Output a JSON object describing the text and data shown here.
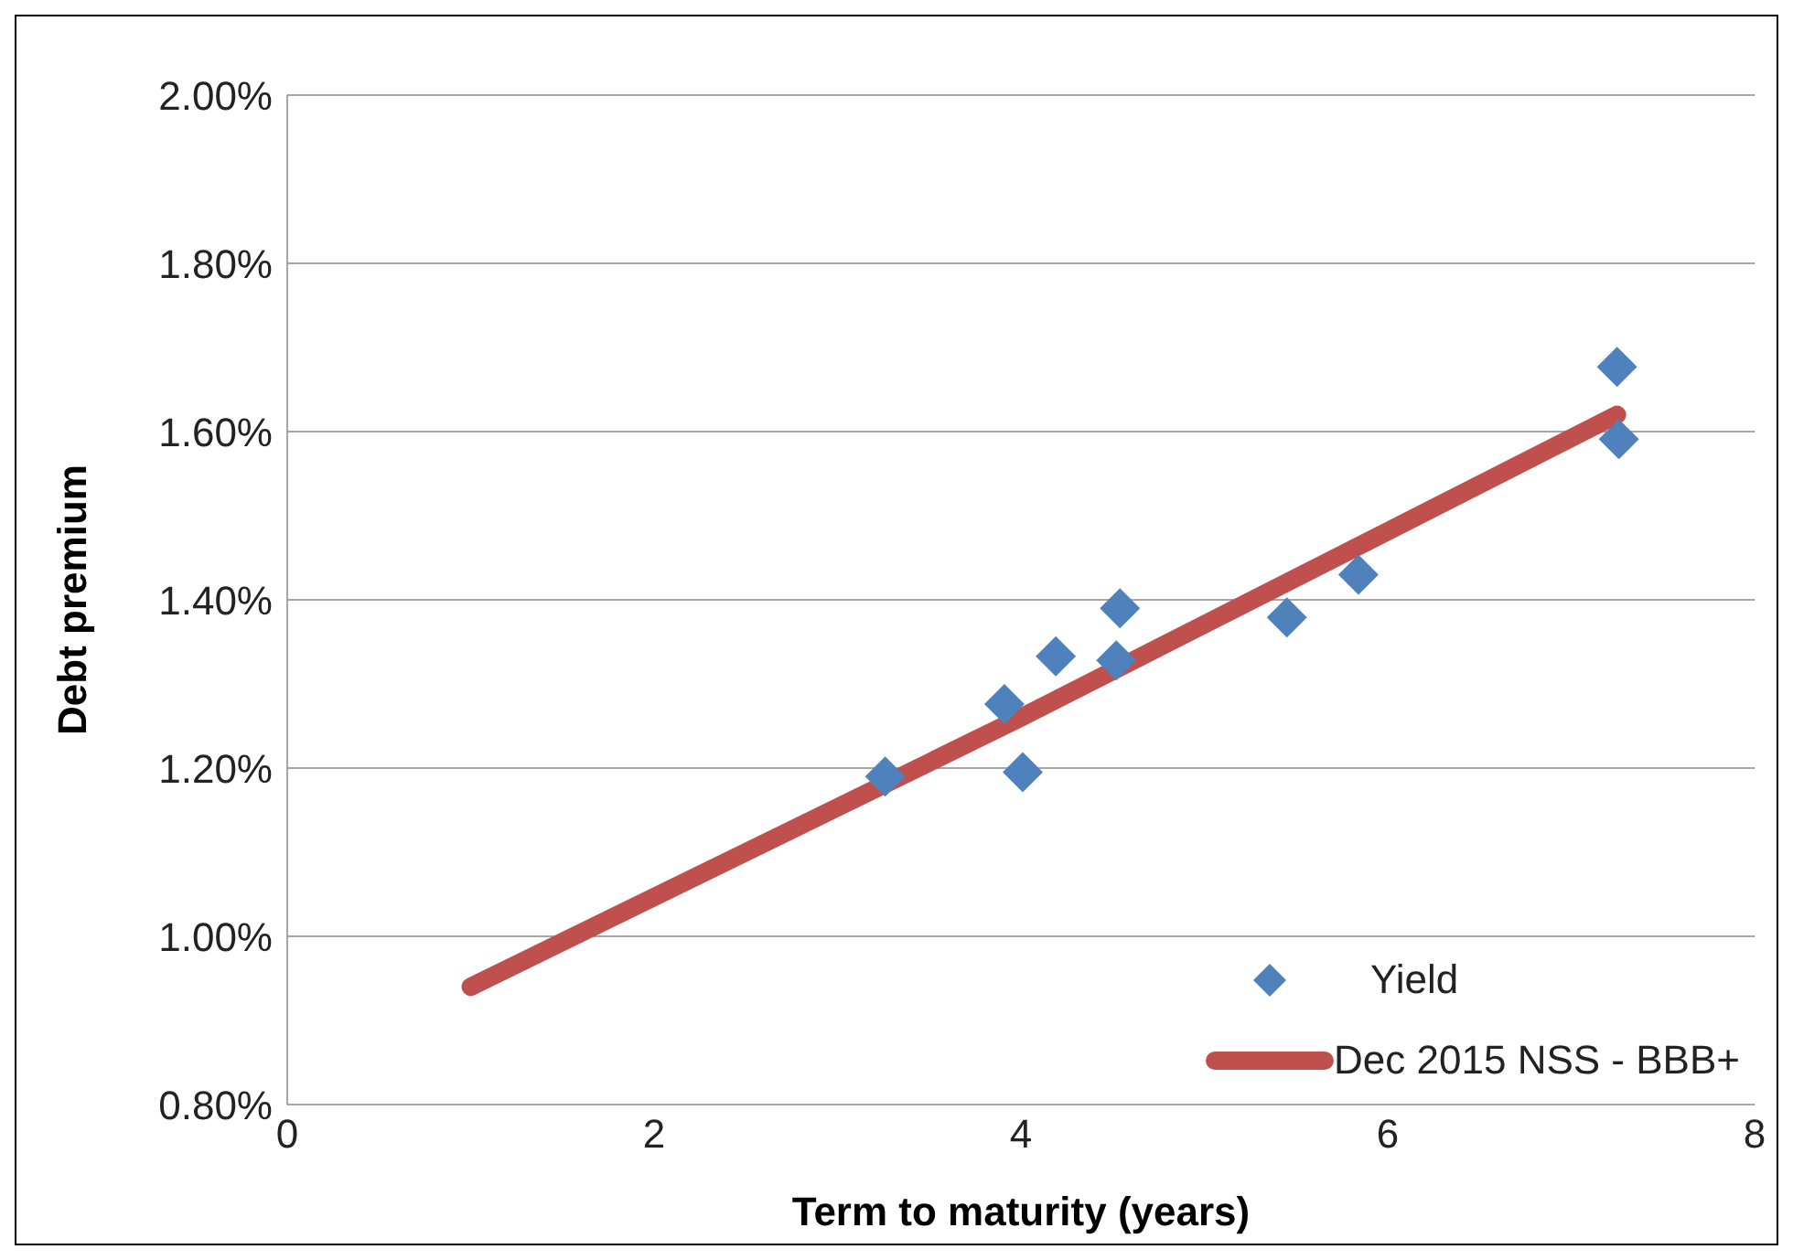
{
  "chart_data": {
    "type": "scatter",
    "xlabel": "Term to maturity (years)",
    "ylabel": "Debt premium",
    "xlim": [
      0,
      8
    ],
    "xticks": [
      0,
      2,
      4,
      6,
      8
    ],
    "ylim": [
      0.8,
      2
    ],
    "yticks": [
      {
        "value": 0.8,
        "label": "0.80%"
      },
      {
        "value": 1,
        "label": "1.00%"
      },
      {
        "value": 1.2,
        "label": "1.20%"
      },
      {
        "value": 1.4,
        "label": "1.40%"
      },
      {
        "value": 1.6,
        "label": "1.60%"
      },
      {
        "value": 1.8,
        "label": "1.80%"
      },
      {
        "value": 2,
        "label": "2.00%"
      }
    ],
    "grid": "y",
    "legend": "bottom right",
    "series": [
      {
        "name": "Yield",
        "marker": "diamond",
        "color": "#4f81bd",
        "x": [
          3.26,
          3.91,
          4.01,
          4.19,
          4.54,
          4.52,
          5.45,
          5.84,
          7.25,
          7.26
        ],
        "values": [
          1.19,
          1.276,
          1.195,
          1.333,
          1.39,
          1.328,
          1.379,
          1.43,
          1.677,
          1.591
        ]
      },
      {
        "name": "Dec 2015 NSS - BBB+",
        "type": "line",
        "marker": "none",
        "color": "#c0504d",
        "x": [
          1,
          4,
          7.25
        ],
        "values": [
          0.94,
          1.26,
          1.62
        ]
      }
    ]
  }
}
